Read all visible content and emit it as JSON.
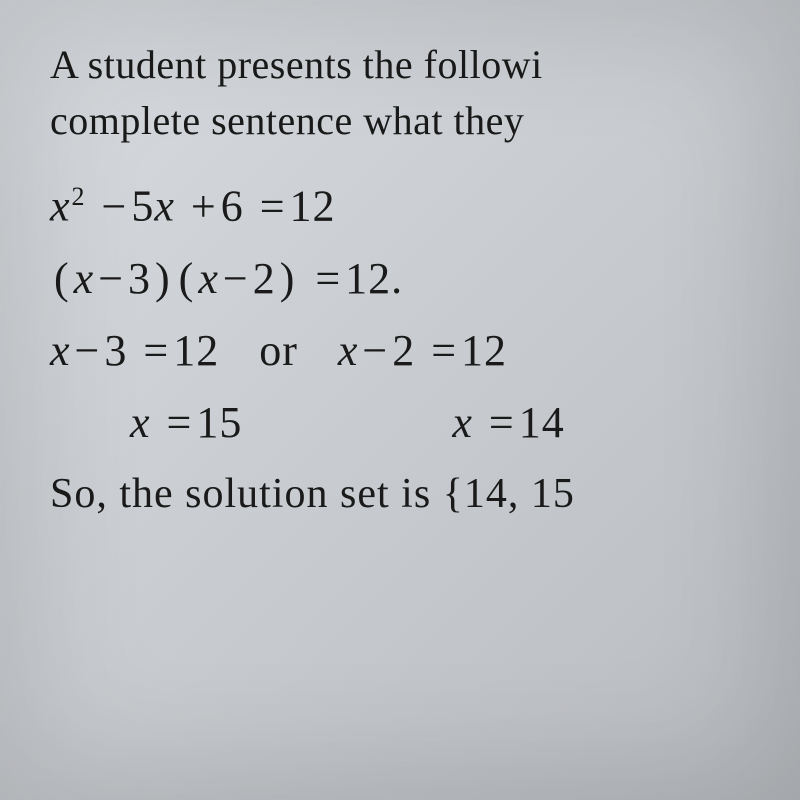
{
  "prompt": {
    "line1": "A student presents the followi",
    "line2": "complete sentence what they"
  },
  "math": {
    "eq1": {
      "lhs_a": "x",
      "exp": "2",
      "op1": "−",
      "b": "5",
      "var2": "x",
      "op2": "+",
      "c": "6",
      "eq": "=",
      "rhs": "12"
    },
    "eq2": {
      "open1": "(",
      "x1": "x",
      "op1": "−",
      "a1": "3",
      "close1": ")",
      "open2": "(",
      "x2": "x",
      "op2": "−",
      "a2": "2",
      "close2": ")",
      "eq": "=",
      "rhs": "12",
      "dot": "."
    },
    "eq3": {
      "left": {
        "x": "x",
        "op": "−",
        "a": "3",
        "eq": "=",
        "rhs": "12"
      },
      "or": "or",
      "right": {
        "x": "x",
        "op": "−",
        "a": "2",
        "eq": "=",
        "rhs": "12"
      }
    },
    "eq4": {
      "left": {
        "x": "x",
        "eq": "=",
        "v": "15"
      },
      "right": {
        "x": "x",
        "eq": "=",
        "v": "14"
      }
    },
    "final": {
      "pre": "So, the solution set is ",
      "brace": "{",
      "v1": "14",
      "comma": ", ",
      "v2": "15"
    }
  },
  "style": {
    "bg_gradient_from": "#d8dce0",
    "bg_gradient_to": "#b8bcc0",
    "text_color": "#1a1a1a",
    "prompt_fontsize": 40,
    "math_fontsize": 44,
    "final_fontsize": 42
  }
}
